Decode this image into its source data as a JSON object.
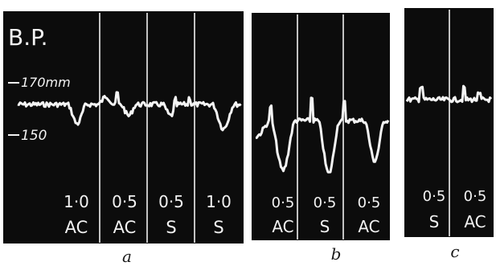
{
  "figure": {
    "y_axis_label": "B.P.",
    "tick_labels": [
      {
        "text": "170mm",
        "value": 170
      },
      {
        "text": "150",
        "value": 150
      }
    ],
    "panels": [
      {
        "label": "a",
        "segments": [
          {
            "dose": "1·0",
            "agent": "AC"
          },
          {
            "dose": "0·5",
            "agent": "AC"
          },
          {
            "dose": "0·5",
            "agent": "S"
          },
          {
            "dose": "1·0",
            "agent": "S"
          }
        ]
      },
      {
        "label": "b",
        "segments": [
          {
            "dose": "0·5",
            "agent": "AC"
          },
          {
            "dose": "0·5",
            "agent": "S"
          },
          {
            "dose": "0·5",
            "agent": "AC"
          }
        ]
      },
      {
        "label": "c",
        "segments": [
          {
            "dose": "0·5",
            "agent": "S"
          },
          {
            "dose": "0·5",
            "agent": "AC"
          }
        ]
      }
    ]
  }
}
